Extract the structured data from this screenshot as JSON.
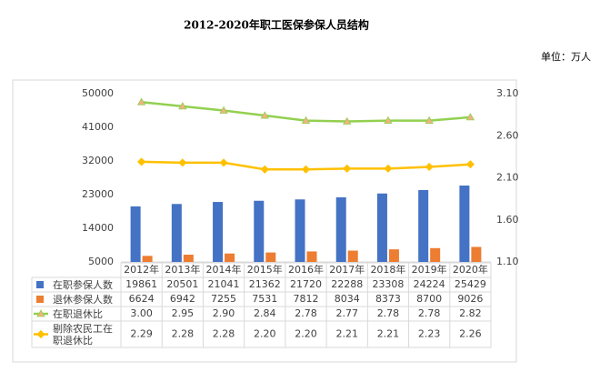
{
  "chart_data": {
    "type": "combo",
    "title": "2012-2020年职工医保参保人员结构",
    "note": "单位：万人",
    "categories": [
      "2012年",
      "2013年",
      "2014年",
      "2015年",
      "2016年",
      "2017年",
      "2018年",
      "2019年",
      "2020年"
    ],
    "series": [
      {
        "name": "在职参保人数",
        "type": "bar",
        "color": "#4472c4",
        "values": [
          19861,
          20501,
          21041,
          21362,
          21720,
          22288,
          23308,
          24224,
          25429
        ]
      },
      {
        "name": "退休参保人数",
        "type": "bar",
        "color": "#ed7d31",
        "values": [
          6624,
          6942,
          7255,
          7531,
          7812,
          8034,
          8373,
          8700,
          9026
        ]
      },
      {
        "name": "在职退休比",
        "type": "line",
        "axis": "y2",
        "color": "#92d050",
        "marker": "triangle",
        "marker_color": "#f4b183",
        "values": [
          3.0,
          2.95,
          2.9,
          2.84,
          2.78,
          2.77,
          2.78,
          2.78,
          2.82
        ],
        "value_labels": [
          "3.00",
          "2.95",
          "2.90",
          "2.84",
          "2.78",
          "2.77",
          "2.78",
          "2.78",
          "2.82"
        ]
      },
      {
        "name": "剔除农民工在职退休比",
        "type": "line",
        "axis": "y2",
        "color": "#ffc000",
        "marker": "diamond",
        "marker_color": "#ffc000",
        "values": [
          2.29,
          2.28,
          2.28,
          2.2,
          2.2,
          2.21,
          2.21,
          2.23,
          2.26
        ],
        "value_labels": [
          "2.29",
          "2.28",
          "2.28",
          "2.20",
          "2.20",
          "2.21",
          "2.21",
          "2.23",
          "2.26"
        ]
      }
    ],
    "ylim": [
      5000,
      50000
    ],
    "yticks": [
      5000,
      14000,
      23000,
      32000,
      41000,
      50000
    ],
    "y2lim": [
      1.1,
      3.1
    ],
    "y2ticks": [
      {
        "value": 1.1,
        "label": "1.10"
      },
      {
        "value": 1.6,
        "label": "1.60"
      },
      {
        "value": 2.1,
        "label": "2.10"
      },
      {
        "value": 2.6,
        "label": "2.60"
      },
      {
        "value": 3.1,
        "label": "3.10"
      }
    ],
    "grid": false
  }
}
